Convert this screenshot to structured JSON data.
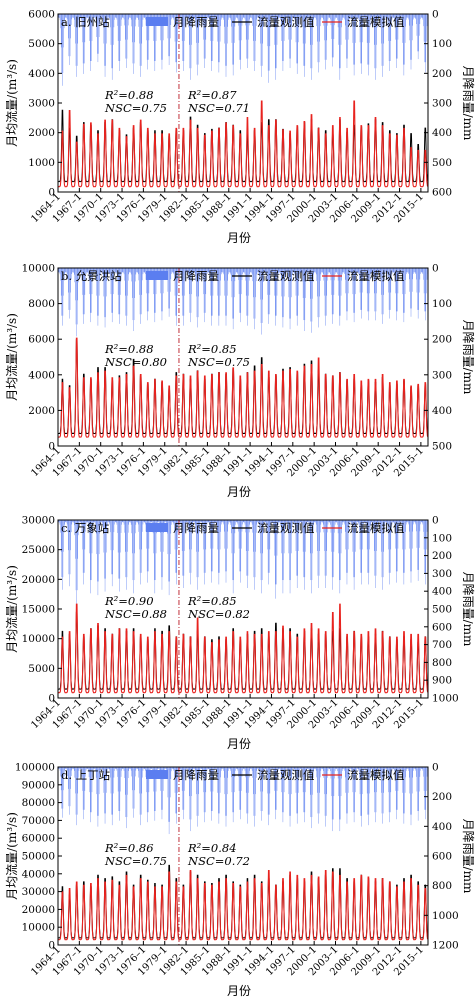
{
  "legend": {
    "rain": "月降雨量",
    "obs": "流量观测值",
    "sim": "流量模拟值"
  },
  "colors": {
    "rain": "#5b7ef0",
    "obs": "#000000",
    "sim": "#e8231f",
    "divider": "#c0303a"
  },
  "chart_data": [
    {
      "type": "line",
      "panel": "a. 旧州站",
      "xlabel": "月份",
      "ylabel": "月均流量/(m³/s)",
      "y2label": "月降雨量/mm",
      "x_ticks": [
        "1964–1",
        "1967–1",
        "1970–1",
        "1973–1",
        "1976–1",
        "1979–1",
        "1982–1",
        "1985–1",
        "1988–1",
        "1991–1",
        "1994–1",
        "1997–1",
        "2000–1",
        "2003–1",
        "2006–1",
        "2009–1",
        "2012–1",
        "2015–1"
      ],
      "ylim": [
        0,
        6000
      ],
      "y_ticks": [
        0,
        1000,
        2000,
        3000,
        4000,
        5000,
        6000
      ],
      "y2lim": [
        0,
        600
      ],
      "y2_ticks": [
        0,
        100,
        200,
        300,
        400,
        500,
        600
      ],
      "y2_inverted": true,
      "divider_year": 1981.0,
      "stats": [
        {
          "r2": "R²=0.88",
          "nsc": "NSC=0.75"
        },
        {
          "r2": "R²=0.87",
          "nsc": "NSC=0.71"
        }
      ],
      "series": [
        {
          "name": "流量观测值",
          "dry": 350,
          "peaks": [
            2950,
            2300,
            2000,
            2500,
            2400,
            2200,
            2500,
            2600,
            2200,
            2050,
            2300,
            2500,
            2200,
            2200,
            2200,
            2000,
            2250,
            2200,
            2700,
            2400,
            2100,
            2250,
            2300,
            2500,
            2400,
            2200,
            2150,
            2200,
            2500,
            2600,
            2600,
            2250,
            2100,
            2350,
            2500,
            2600,
            2300,
            2200,
            2050,
            2600,
            2150,
            2400,
            2350,
            2450,
            2600,
            2500,
            2200,
            2100,
            2400,
            2100,
            1700,
            2300
          ]
        },
        {
          "name": "流量模拟值",
          "dry": 180,
          "peaks": [
            2200,
            2950,
            1800,
            2450,
            2500,
            2100,
            2600,
            2600,
            2300,
            2000,
            2400,
            2600,
            2300,
            2100,
            2100,
            2100,
            2300,
            2300,
            2600,
            2300,
            2050,
            2200,
            2300,
            2500,
            2400,
            2100,
            2700,
            2300,
            3300,
            2400,
            2600,
            2250,
            2200,
            2400,
            2550,
            2800,
            2300,
            2100,
            2400,
            2700,
            2300,
            3300,
            2400,
            2400,
            2700,
            2400,
            2100,
            2050,
            2300,
            1600,
            1500,
            1500
          ]
        }
      ],
      "rain_peaks": [
        230,
        160,
        200,
        190,
        180,
        150,
        200,
        210,
        180,
        170,
        190,
        200,
        175,
        180,
        175,
        160,
        185,
        180,
        210,
        195,
        170,
        180,
        185,
        200,
        195,
        175,
        170,
        180,
        200,
        220,
        210,
        180,
        170,
        190,
        200,
        210,
        185,
        175,
        165,
        210,
        170,
        195,
        190,
        195,
        210,
        200,
        180,
        170,
        195,
        175,
        140,
        185
      ]
    },
    {
      "type": "line",
      "panel": "b. 允景洪站",
      "xlabel": "月份",
      "ylabel": "月均流量/(m³/s)",
      "y2label": "月降雨量/mm",
      "x_ticks": [
        "1964–1",
        "1967–1",
        "1970–1",
        "1973–1",
        "1976–1",
        "1979–1",
        "1982–1",
        "1985–1",
        "1988–1",
        "1991–1",
        "1994–1",
        "1997–1",
        "2000–1",
        "2003–1",
        "2006–1",
        "2009–1",
        "2012–1",
        "2015–1"
      ],
      "ylim": [
        0,
        10000
      ],
      "y_ticks": [
        0,
        2000,
        4000,
        6000,
        8000,
        10000
      ],
      "y2lim": [
        0,
        500
      ],
      "y2_ticks": [
        0,
        100,
        200,
        300,
        400,
        500
      ],
      "y2_inverted": true,
      "divider_year": 1981.0,
      "stats": [
        {
          "r2": "R²=0.88",
          "nsc": "NSC=0.80"
        },
        {
          "r2": "R²=0.85",
          "nsc": "NSC=0.75"
        }
      ],
      "series": [
        {
          "name": "流量观测值",
          "dry": 700,
          "peaks": [
            4000,
            3600,
            6400,
            4300,
            4000,
            4700,
            4700,
            3900,
            4200,
            4400,
            5200,
            4200,
            3700,
            4000,
            3800,
            3400,
            4400,
            4300,
            4000,
            4500,
            4000,
            4300,
            4400,
            4300,
            4600,
            4000,
            4400,
            4800,
            5300,
            4100,
            4200,
            4600,
            4700,
            4400,
            4900,
            5100,
            4500,
            4300,
            4200,
            4400,
            3900,
            4000,
            3600,
            3900,
            3800,
            4100,
            3600,
            3700,
            3900,
            3500,
            3600,
            3700
          ]
        },
        {
          "name": "流量模拟值",
          "dry": 500,
          "peaks": [
            3800,
            3500,
            6500,
            4100,
            4100,
            4400,
            4500,
            4100,
            4100,
            4300,
            4800,
            4300,
            3800,
            4000,
            3900,
            3600,
            4200,
            4300,
            4200,
            4500,
            4200,
            4300,
            4400,
            4400,
            4700,
            4200,
            4400,
            4500,
            4900,
            4500,
            4300,
            4500,
            4600,
            4500,
            4800,
            4900,
            5300,
            4300,
            4200,
            4400,
            4000,
            4300,
            3900,
            4000,
            4000,
            4300,
            3800,
            3900,
            4000,
            3600,
            3700,
            3800
          ]
        }
      ],
      "rain_peaks": [
        150,
        130,
        180,
        145,
        140,
        150,
        155,
        140,
        145,
        150,
        165,
        145,
        135,
        140,
        135,
        125,
        150,
        150,
        140,
        155,
        140,
        150,
        150,
        150,
        160,
        140,
        150,
        160,
        175,
        145,
        150,
        155,
        160,
        150,
        165,
        170,
        155,
        150,
        145,
        150,
        135,
        140,
        130,
        135,
        135,
        145,
        130,
        135,
        140,
        125,
        130,
        135
      ]
    },
    {
      "type": "line",
      "panel": "c. 万象站",
      "xlabel": "月份",
      "ylabel": "月均流量/(m³/s)",
      "y2label": "月降雨量/mm",
      "x_ticks": [
        "1964–1",
        "1967–1",
        "1970–1",
        "1973–1",
        "1976–1",
        "1979–1",
        "1982–1",
        "1985–1",
        "1988–1",
        "1991–1",
        "1994–1",
        "1997–1",
        "2000–1",
        "2003–1",
        "2006–1",
        "2009–1",
        "2012–1",
        "2015–1"
      ],
      "ylim": [
        0,
        30000
      ],
      "y_ticks": [
        0,
        5000,
        10000,
        15000,
        20000,
        25000,
        30000
      ],
      "y2lim": [
        0,
        1000
      ],
      "y2_ticks": [
        0,
        100,
        200,
        300,
        400,
        500,
        600,
        700,
        800,
        900,
        1000
      ],
      "y2_inverted": true,
      "divider_year": 1981.0,
      "stats": [
        {
          "r2": "R²=0.90",
          "nsc": "NSC=0.88"
        },
        {
          "r2": "R²=0.85",
          "nsc": "NSC=0.82"
        }
      ],
      "series": [
        {
          "name": "流量观测值",
          "dry": 1500,
          "peaks": [
            12000,
            11500,
            15500,
            11000,
            12500,
            13000,
            12500,
            11500,
            12500,
            12000,
            12500,
            11000,
            10500,
            12500,
            12000,
            13000,
            11000,
            11500,
            11000,
            12000,
            11000,
            10500,
            11000,
            10500,
            12500,
            10500,
            11500,
            12000,
            12500,
            11000,
            13500,
            12500,
            12500,
            11500,
            12000,
            12500,
            11500,
            11500,
            12000,
            12500,
            11000,
            12000,
            11000,
            11000,
            11500,
            12000,
            11000,
            10500,
            11000,
            10500,
            10000,
            11000
          ]
        },
        {
          "name": "流量模拟值",
          "dry": 900,
          "peaks": [
            11000,
            12000,
            17000,
            11500,
            12500,
            13500,
            12000,
            11500,
            12500,
            12500,
            12000,
            11500,
            11000,
            12000,
            11500,
            12000,
            11000,
            11500,
            11000,
            14500,
            11000,
            10000,
            10500,
            11000,
            12000,
            11000,
            12000,
            11500,
            11500,
            12000,
            12000,
            13000,
            12000,
            11000,
            12500,
            13500,
            12500,
            12000,
            15500,
            17000,
            11500,
            12000,
            11500,
            12000,
            12500,
            12000,
            11000,
            11000,
            12000,
            11500,
            11500,
            11000
          ]
        }
      ],
      "rain_peaks": [
        380,
        360,
        470,
        350,
        400,
        410,
        390,
        360,
        390,
        380,
        400,
        350,
        340,
        400,
        380,
        410,
        350,
        370,
        350,
        380,
        350,
        340,
        350,
        340,
        400,
        340,
        370,
        380,
        400,
        350,
        430,
        400,
        400,
        370,
        380,
        400,
        370,
        370,
        380,
        400,
        350,
        380,
        350,
        350,
        370,
        380,
        350,
        340,
        350,
        340,
        330,
        350
      ]
    },
    {
      "type": "line",
      "panel": "d. 上丁站",
      "xlabel": "月份",
      "ylabel": "月均流量/(m³/s)",
      "y2label": "月降雨量/mm",
      "x_ticks": [
        "1964–1",
        "1967–1",
        "1970–1",
        "1973–1",
        "1976–1",
        "1979–1",
        "1982–1",
        "1985–1",
        "1988–1",
        "1991–1",
        "1994–1",
        "1997–1",
        "2000–1",
        "2003–1",
        "2006–1",
        "2009–1",
        "2012–1",
        "2015–1"
      ],
      "ylim": [
        0,
        100000
      ],
      "y_ticks": [
        0,
        10000,
        20000,
        30000,
        40000,
        50000,
        60000,
        70000,
        80000,
        90000,
        100000
      ],
      "y2lim": [
        0,
        1200
      ],
      "y2_ticks": [
        0,
        200,
        400,
        600,
        800,
        1000,
        1200
      ],
      "y2_inverted": true,
      "divider_year": 1981.0,
      "stats": [
        {
          "r2": "R²=0.86",
          "nsc": "NSC=0.75"
        },
        {
          "r2": "R²=0.84",
          "nsc": "NSC=0.72"
        }
      ],
      "series": [
        {
          "name": "流量观测值",
          "dry": 4000,
          "peaks": [
            35000,
            30000,
            36000,
            38000,
            35000,
            42000,
            40000,
            41000,
            38000,
            44000,
            36000,
            42000,
            39000,
            37000,
            36000,
            48000,
            40000,
            36000,
            44000,
            42000,
            38000,
            37000,
            40000,
            42000,
            38000,
            36000,
            40000,
            42000,
            38000,
            40000,
            36000,
            38000,
            42000,
            40000,
            38000,
            44000,
            40000,
            42000,
            46000,
            46000,
            40000,
            38000,
            42000,
            40000,
            38000,
            40000,
            38000,
            36000,
            40000,
            42000,
            38000,
            36000
          ]
        },
        {
          "name": "流量模拟值",
          "dry": 3000,
          "peaks": [
            32000,
            34000,
            38000,
            36000,
            37000,
            40000,
            38000,
            39000,
            36000,
            42000,
            35000,
            40000,
            38000,
            35000,
            35000,
            44000,
            38000,
            35000,
            45000,
            40000,
            37000,
            36000,
            38000,
            40000,
            37000,
            35000,
            38000,
            40000,
            37000,
            45000,
            36000,
            40000,
            44000,
            42000,
            40000,
            42000,
            41000,
            45000,
            44000,
            42000,
            38000,
            40000,
            42000,
            41000,
            40000,
            40000,
            38000,
            35000,
            38000,
            40000,
            36000,
            34000
          ]
        }
      ],
      "rain_peaks": [
        330,
        310,
        380,
        340,
        360,
        390,
        370,
        380,
        350,
        400,
        330,
        380,
        360,
        350,
        340,
        440,
        370,
        340,
        420,
        390,
        360,
        350,
        370,
        390,
        360,
        340,
        370,
        390,
        350,
        380,
        340,
        360,
        390,
        370,
        360,
        400,
        370,
        390,
        420,
        420,
        370,
        360,
        390,
        380,
        360,
        370,
        360,
        340,
        370,
        380,
        350,
        340
      ]
    }
  ]
}
